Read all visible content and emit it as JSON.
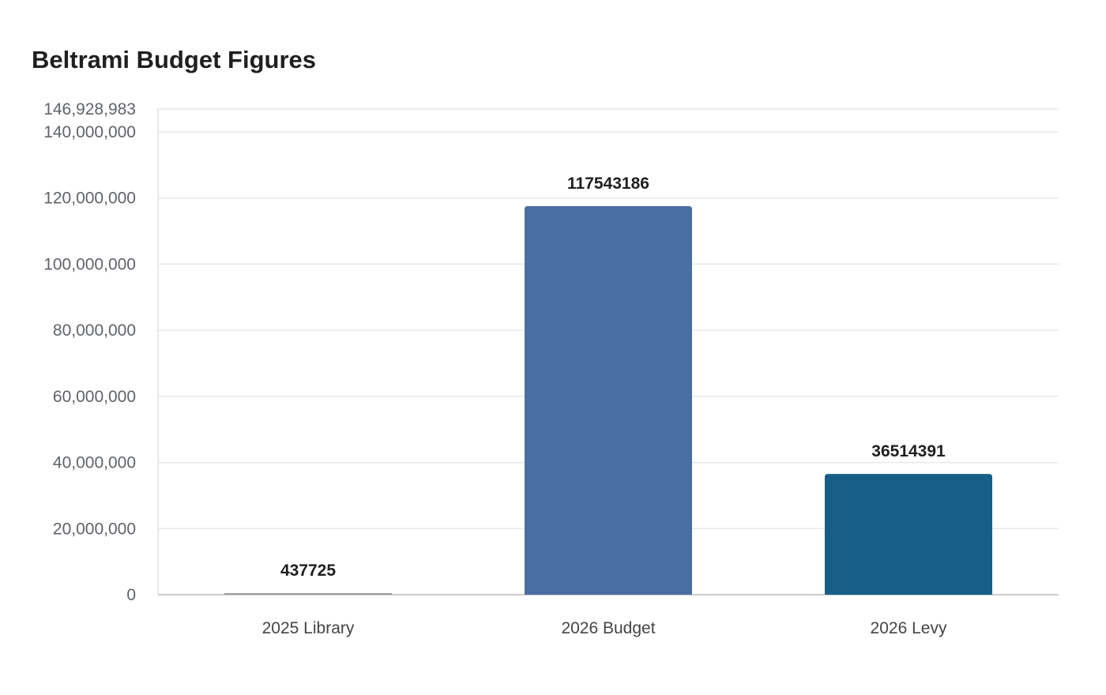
{
  "chart_data": {
    "type": "bar",
    "title": "Beltrami Budget Figures",
    "xlabel": "",
    "ylabel": "",
    "categories": [
      "2025 Library",
      "2026 Budget",
      "2026 Levy"
    ],
    "values": [
      437725,
      117543186,
      36514391
    ],
    "data_labels": [
      "437725",
      "117543186",
      "36514391"
    ],
    "colors": [
      "#9e9e9e",
      "#4a6ea3",
      "#175f87"
    ],
    "ylim": [
      0,
      146928983
    ],
    "yticks": [
      0,
      20000000,
      40000000,
      60000000,
      80000000,
      100000000,
      120000000,
      140000000,
      146928983
    ],
    "ytick_labels": [
      "0",
      "20,000,000",
      "40,000,000",
      "60,000,000",
      "80,000,000",
      "100,000,000",
      "120,000,000",
      "140,000,000",
      "146,928,983"
    ],
    "grid": true,
    "legend": "none"
  }
}
